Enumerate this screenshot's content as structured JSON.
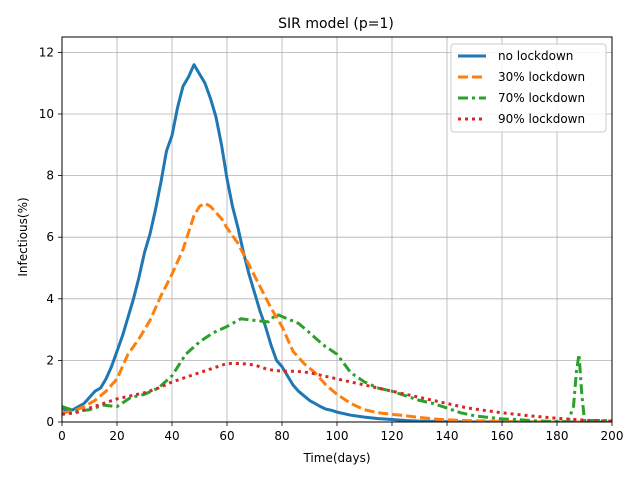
{
  "chart_data": {
    "type": "line",
    "title": "SIR model (p=1)",
    "xlabel": "Time(days)",
    "ylabel": "Infectious(%)",
    "xlim": [
      0,
      200
    ],
    "ylim": [
      0,
      12.5
    ],
    "xticks": [
      0,
      20,
      40,
      60,
      80,
      100,
      120,
      140,
      160,
      180,
      200
    ],
    "yticks": [
      0,
      2,
      4,
      6,
      8,
      10,
      12
    ],
    "grid": true,
    "legend_position": "top-right",
    "series": [
      {
        "name": "no lockdown",
        "color": "#1f77b4",
        "dash": "solid",
        "x": [
          0,
          2,
          4,
          6,
          8,
          10,
          12,
          14,
          16,
          18,
          20,
          22,
          24,
          26,
          28,
          30,
          32,
          34,
          36,
          38,
          40,
          42,
          44,
          46,
          48,
          50,
          52,
          54,
          56,
          58,
          60,
          62,
          64,
          66,
          68,
          70,
          72,
          74,
          76,
          78,
          80,
          82,
          84,
          86,
          88,
          90,
          92,
          94,
          96,
          98,
          100,
          105,
          110,
          115,
          120,
          125,
          130,
          135,
          140,
          150,
          160,
          170,
          180,
          190,
          200
        ],
        "y": [
          0.45,
          0.35,
          0.4,
          0.5,
          0.6,
          0.8,
          1.0,
          1.1,
          1.4,
          1.8,
          2.3,
          2.8,
          3.4,
          4.0,
          4.7,
          5.5,
          6.1,
          6.9,
          7.8,
          8.8,
          9.3,
          10.2,
          10.9,
          11.2,
          11.6,
          11.3,
          11.0,
          10.5,
          9.9,
          9.0,
          7.9,
          7.0,
          6.3,
          5.5,
          4.8,
          4.2,
          3.6,
          3.1,
          2.5,
          2.0,
          1.8,
          1.5,
          1.2,
          1.0,
          0.85,
          0.7,
          0.6,
          0.5,
          0.42,
          0.38,
          0.32,
          0.22,
          0.16,
          0.11,
          0.08,
          0.05,
          0.03,
          0.02,
          0.01,
          0.0,
          0.0,
          0.0,
          0.0,
          0.0,
          0.0
        ]
      },
      {
        "name": "30% lockdown",
        "color": "#ff7f0e",
        "dash": "dashed",
        "x": [
          0,
          4,
          8,
          12,
          16,
          20,
          24,
          28,
          32,
          36,
          40,
          44,
          48,
          50,
          52,
          54,
          56,
          58,
          60,
          64,
          68,
          72,
          76,
          80,
          84,
          88,
          92,
          96,
          100,
          105,
          110,
          115,
          120,
          125,
          130,
          135,
          140,
          150,
          160,
          170,
          180,
          190,
          200
        ],
        "y": [
          0.3,
          0.35,
          0.5,
          0.7,
          1.0,
          1.4,
          2.2,
          2.7,
          3.3,
          4.1,
          4.8,
          5.6,
          6.7,
          7.0,
          7.1,
          7.0,
          6.8,
          6.6,
          6.3,
          5.8,
          5.1,
          4.4,
          3.7,
          3.1,
          2.3,
          1.9,
          1.6,
          1.2,
          0.9,
          0.6,
          0.4,
          0.3,
          0.25,
          0.2,
          0.15,
          0.1,
          0.07,
          0.04,
          0.02,
          0.01,
          0.0,
          0.0,
          0.0
        ]
      },
      {
        "name": "70% lockdown",
        "color": "#2ca02c",
        "dash": "dashdot",
        "x": [
          0,
          5,
          10,
          15,
          20,
          25,
          30,
          35,
          40,
          45,
          50,
          55,
          60,
          65,
          70,
          75,
          78,
          82,
          86,
          90,
          95,
          100,
          105,
          110,
          115,
          120,
          125,
          130,
          135,
          140,
          145,
          150,
          155,
          160,
          165,
          170,
          175,
          180,
          184,
          186,
          187,
          188,
          189,
          190,
          195,
          200
        ],
        "y": [
          0.5,
          0.35,
          0.4,
          0.55,
          0.5,
          0.8,
          0.9,
          1.1,
          1.5,
          2.2,
          2.6,
          2.9,
          3.1,
          3.35,
          3.3,
          3.25,
          3.5,
          3.35,
          3.2,
          2.9,
          2.5,
          2.2,
          1.6,
          1.3,
          1.1,
          1.0,
          0.85,
          0.7,
          0.6,
          0.45,
          0.3,
          0.2,
          0.15,
          0.1,
          0.08,
          0.05,
          0.03,
          0.02,
          0.01,
          0.5,
          1.6,
          2.2,
          0.9,
          0.05,
          0.05,
          0.05
        ]
      },
      {
        "name": "90% lockdown",
        "color": "#d62728",
        "dash": "dotted",
        "x": [
          0,
          5,
          10,
          15,
          20,
          25,
          30,
          35,
          40,
          45,
          50,
          55,
          60,
          65,
          70,
          75,
          80,
          85,
          90,
          95,
          100,
          105,
          110,
          115,
          120,
          125,
          130,
          135,
          140,
          145,
          150,
          155,
          160,
          165,
          170,
          175,
          180,
          185,
          190,
          195,
          200
        ],
        "y": [
          0.25,
          0.3,
          0.45,
          0.6,
          0.75,
          0.85,
          0.95,
          1.1,
          1.3,
          1.45,
          1.6,
          1.75,
          1.9,
          1.9,
          1.85,
          1.7,
          1.65,
          1.65,
          1.6,
          1.5,
          1.4,
          1.3,
          1.2,
          1.1,
          1.0,
          0.9,
          0.8,
          0.7,
          0.6,
          0.5,
          0.42,
          0.36,
          0.3,
          0.25,
          0.2,
          0.16,
          0.12,
          0.09,
          0.06,
          0.04,
          0.03
        ]
      }
    ]
  }
}
